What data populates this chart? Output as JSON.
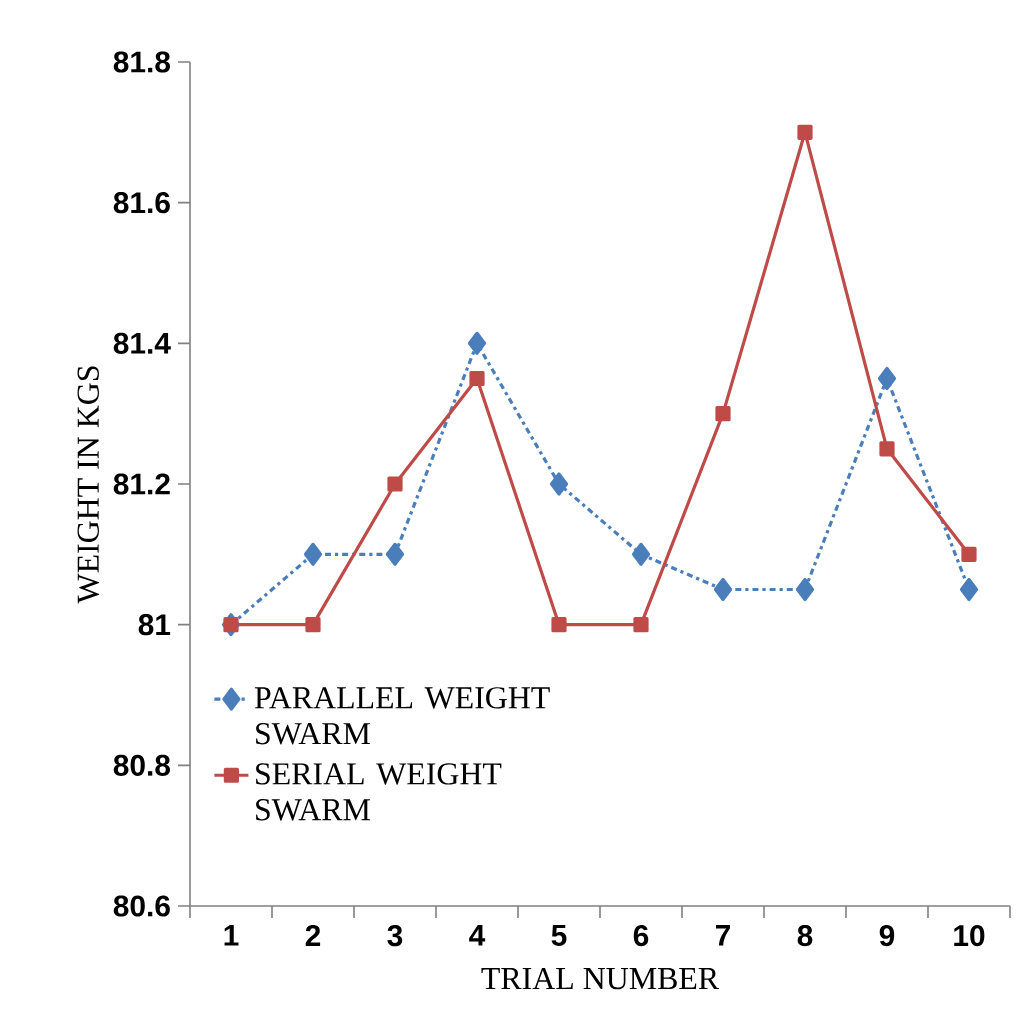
{
  "chart_data": {
    "type": "line",
    "xlabel": "TRIAL NUMBER",
    "ylabel": "WEIGHT IN KGS",
    "categories": [
      "1",
      "2",
      "3",
      "4",
      "5",
      "6",
      "7",
      "8",
      "9",
      "10"
    ],
    "series": [
      {
        "name": "PARALLEL WEIGHT SWARM",
        "color": "#4a7ebb",
        "marker": "diamond",
        "line_style": "dashdot",
        "values": [
          81.0,
          81.1,
          81.1,
          81.4,
          81.2,
          81.1,
          81.05,
          81.05,
          81.35,
          81.05
        ]
      },
      {
        "name": "SERIAL WEIGHT SWARM",
        "color": "#be4b48",
        "marker": "square",
        "line_style": "solid",
        "values": [
          81.0,
          81.0,
          81.2,
          81.35,
          81.0,
          81.0,
          81.3,
          81.7,
          81.25,
          81.1
        ]
      }
    ],
    "ylim": [
      80.6,
      81.8
    ],
    "yticks": [
      80.6,
      80.8,
      81,
      81.2,
      81.4,
      81.6,
      81.8
    ],
    "grid": false,
    "legend": "left"
  }
}
